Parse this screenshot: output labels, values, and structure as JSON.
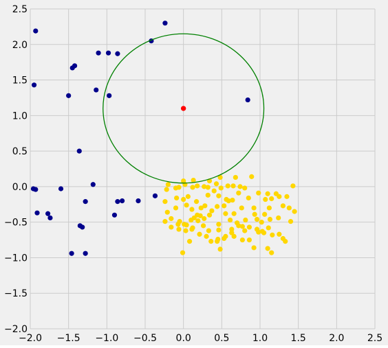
{
  "chart_data": {
    "type": "scatter",
    "title": "",
    "xlabel": "",
    "ylabel": "",
    "xlim": [
      -2.0,
      2.5
    ],
    "ylim": [
      -2.0,
      2.5
    ],
    "xticks": [
      "−2.0",
      "−1.5",
      "−1.0",
      "−0.5",
      "0.0",
      "0.5",
      "1.0",
      "1.5",
      "2.0",
      "2.5"
    ],
    "xtick_values": [
      -2.0,
      -1.5,
      -1.0,
      -0.5,
      0.0,
      0.5,
      1.0,
      1.5,
      2.0,
      2.5
    ],
    "yticks": [
      "2.5",
      "2.0",
      "1.5",
      "1.0",
      "0.5",
      "0.0",
      "−0.5",
      "−1.0",
      "−1.5",
      "−2.0"
    ],
    "ytick_values": [
      2.5,
      2.0,
      1.5,
      1.0,
      0.5,
      0.0,
      -0.5,
      -1.0,
      -1.5,
      -2.0
    ],
    "grid": true,
    "background_color": "#f0f0f0",
    "grid_color": "#cbcbcb",
    "series": [
      {
        "color": "#00008b",
        "points": [
          [
            -1.93,
            2.19
          ],
          [
            -0.24,
            2.3
          ],
          [
            -0.42,
            2.05
          ],
          [
            -1.11,
            1.88
          ],
          [
            -0.98,
            1.88
          ],
          [
            -0.86,
            1.87
          ],
          [
            -1.45,
            1.67
          ],
          [
            -1.42,
            1.7
          ],
          [
            -1.95,
            1.43
          ],
          [
            -1.14,
            1.36
          ],
          [
            -1.5,
            1.28
          ],
          [
            -0.97,
            1.28
          ],
          [
            0.84,
            1.22
          ],
          [
            -1.36,
            0.5
          ],
          [
            -1.96,
            -0.03
          ],
          [
            -1.93,
            -0.04
          ],
          [
            -1.6,
            -0.03
          ],
          [
            -1.18,
            0.03
          ],
          [
            -0.37,
            -0.13
          ],
          [
            -0.59,
            -0.2
          ],
          [
            -0.8,
            -0.2
          ],
          [
            -0.86,
            -0.21
          ],
          [
            -1.28,
            -0.21
          ],
          [
            -1.91,
            -0.37
          ],
          [
            -1.77,
            -0.38
          ],
          [
            -1.74,
            -0.44
          ],
          [
            -0.9,
            -0.4
          ],
          [
            -1.35,
            -0.55
          ],
          [
            -1.32,
            -0.57
          ],
          [
            -1.46,
            -0.94
          ],
          [
            -1.28,
            -0.94
          ]
        ]
      },
      {
        "color": "#ffd700",
        "points": [
          [
            -0.2,
            0.03
          ],
          [
            0.0,
            0.08
          ],
          [
            0.13,
            0.09
          ],
          [
            0.34,
            0.08
          ],
          [
            0.48,
            0.13
          ],
          [
            0.89,
            0.14
          ],
          [
            0.68,
            0.13
          ],
          [
            -0.22,
            -0.04
          ],
          [
            -0.1,
            -0.02
          ],
          [
            -0.06,
            -0.01
          ],
          [
            0.02,
            0.03
          ],
          [
            0.12,
            -0.01
          ],
          [
            0.18,
            0.01
          ],
          [
            0.27,
            0.0
          ],
          [
            0.32,
            -0.01
          ],
          [
            0.43,
            0.04
          ],
          [
            0.49,
            -0.02
          ],
          [
            0.58,
            0.01
          ],
          [
            0.65,
            0.01
          ],
          [
            0.74,
            0.0
          ],
          [
            0.8,
            -0.02
          ],
          [
            0.98,
            -0.09
          ],
          [
            1.1,
            -0.1
          ],
          [
            1.21,
            -0.1
          ],
          [
            1.43,
            0.01
          ],
          [
            -0.24,
            -0.21
          ],
          [
            -0.09,
            -0.16
          ],
          [
            0.0,
            -0.18
          ],
          [
            0.06,
            -0.14
          ],
          [
            0.17,
            -0.21
          ],
          [
            0.32,
            -0.12
          ],
          [
            0.4,
            -0.06
          ],
          [
            0.46,
            -0.13
          ],
          [
            0.56,
            -0.18
          ],
          [
            0.64,
            -0.19
          ],
          [
            0.72,
            -0.09
          ],
          [
            0.85,
            -0.16
          ],
          [
            0.92,
            -0.3
          ],
          [
            1.07,
            -0.18
          ],
          [
            1.15,
            -0.17
          ],
          [
            1.25,
            -0.14
          ],
          [
            1.3,
            -0.27
          ],
          [
            1.35,
            -0.14
          ],
          [
            -0.21,
            -0.36
          ],
          [
            -0.1,
            -0.3
          ],
          [
            0.04,
            -0.26
          ],
          [
            0.11,
            -0.32
          ],
          [
            0.18,
            -0.4
          ],
          [
            0.23,
            -0.3
          ],
          [
            0.28,
            -0.27
          ],
          [
            0.37,
            -0.34
          ],
          [
            0.44,
            -0.28
          ],
          [
            0.53,
            -0.27
          ],
          [
            0.59,
            -0.2
          ],
          [
            0.66,
            -0.38
          ],
          [
            0.76,
            -0.3
          ],
          [
            0.81,
            -0.47
          ],
          [
            0.93,
            -0.39
          ],
          [
            1.06,
            -0.39
          ],
          [
            1.12,
            -0.3
          ],
          [
            1.38,
            -0.3
          ],
          [
            1.45,
            -0.35
          ],
          [
            -0.24,
            -0.49
          ],
          [
            -0.16,
            -0.45
          ],
          [
            -0.05,
            -0.49
          ],
          [
            0.01,
            -0.53
          ],
          [
            0.1,
            -0.47
          ],
          [
            0.14,
            -0.44
          ],
          [
            0.22,
            -0.41
          ],
          [
            0.27,
            -0.45
          ],
          [
            0.34,
            -0.4
          ],
          [
            0.46,
            -0.53
          ],
          [
            0.55,
            -0.38
          ],
          [
            0.61,
            -0.47
          ],
          [
            0.7,
            -0.51
          ],
          [
            0.77,
            -0.56
          ],
          [
            0.86,
            -0.57
          ],
          [
            0.96,
            -0.46
          ],
          [
            1.02,
            -0.5
          ],
          [
            1.13,
            -0.46
          ],
          [
            1.24,
            -0.44
          ],
          [
            1.4,
            -0.49
          ],
          [
            -0.16,
            -0.57
          ],
          [
            -0.07,
            -0.53
          ],
          [
            0.04,
            -0.54
          ],
          [
            0.12,
            -0.58
          ],
          [
            0.19,
            -0.48
          ],
          [
            0.26,
            -0.55
          ],
          [
            0.33,
            -0.62
          ],
          [
            0.46,
            -0.61
          ],
          [
            0.55,
            -0.7
          ],
          [
            0.63,
            -0.6
          ],
          [
            0.72,
            -0.55
          ],
          [
            0.8,
            -0.62
          ],
          [
            0.96,
            -0.6
          ],
          [
            1.03,
            -0.63
          ],
          [
            1.11,
            -0.58
          ],
          [
            1.16,
            -0.68
          ],
          [
            1.25,
            -0.67
          ],
          [
            0.03,
            -0.62
          ],
          [
            0.11,
            -0.6
          ],
          [
            0.21,
            -0.67
          ],
          [
            0.36,
            -0.77
          ],
          [
            0.45,
            -0.74
          ],
          [
            0.53,
            -0.73
          ],
          [
            0.63,
            -0.65
          ],
          [
            0.66,
            -0.7
          ],
          [
            0.77,
            -0.75
          ],
          [
            0.86,
            -0.75
          ],
          [
            0.98,
            -0.64
          ],
          [
            1.05,
            -0.65
          ],
          [
            1.3,
            -0.73
          ],
          [
            1.33,
            -0.77
          ],
          [
            -0.06,
            -0.6
          ],
          [
            0.08,
            -0.77
          ],
          [
            0.3,
            -0.7
          ],
          [
            0.44,
            -0.77
          ],
          [
            0.48,
            -0.88
          ],
          [
            0.92,
            -0.86
          ],
          [
            1.1,
            -0.87
          ],
          [
            1.15,
            -0.93
          ],
          [
            -0.01,
            -0.93
          ]
        ]
      },
      {
        "color": "#ff0000",
        "points": [
          [
            0.0,
            1.1
          ]
        ]
      }
    ],
    "circle": {
      "cx": 0.0,
      "cy": 1.1,
      "r": 1.05,
      "color": "#008000"
    }
  }
}
